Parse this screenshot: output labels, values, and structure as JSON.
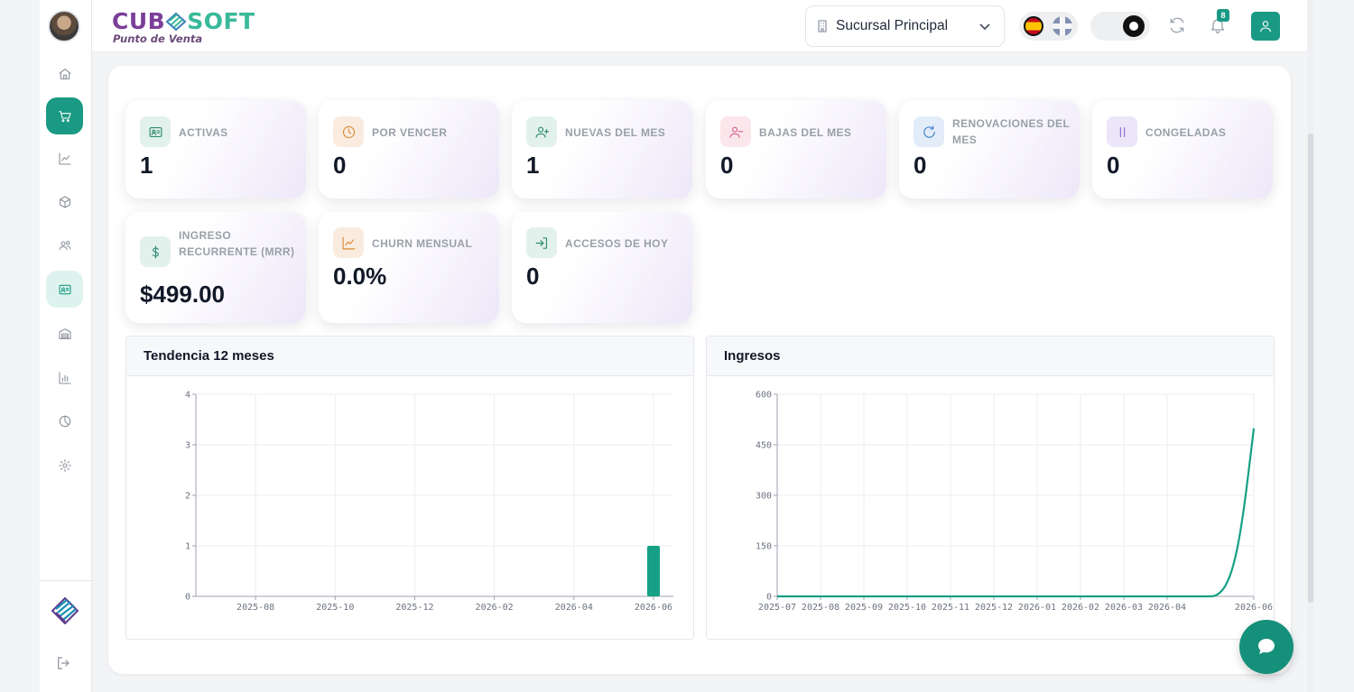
{
  "brand": {
    "name_part1": "CUB",
    "name_part2": "SOFT",
    "tagline": "Punto de Venta"
  },
  "header": {
    "branch_label": "Sucursal Principal",
    "notifications_count": "8",
    "languages": [
      "es",
      "en"
    ]
  },
  "sidebar": {
    "items": [
      {
        "name": "home",
        "icon": "home-icon",
        "state": "normal"
      },
      {
        "name": "sales",
        "icon": "cart-icon",
        "state": "active"
      },
      {
        "name": "analytics",
        "icon": "trend-icon",
        "state": "normal"
      },
      {
        "name": "inventory",
        "icon": "box-icon",
        "state": "normal"
      },
      {
        "name": "customers",
        "icon": "users-icon",
        "state": "normal"
      },
      {
        "name": "memberships",
        "icon": "id-card-icon",
        "state": "selected"
      },
      {
        "name": "warehouse",
        "icon": "warehouse-icon",
        "state": "normal"
      },
      {
        "name": "reports",
        "icon": "bar-chart-icon",
        "state": "normal"
      },
      {
        "name": "history",
        "icon": "clock-icon",
        "state": "normal"
      },
      {
        "name": "settings",
        "icon": "gear-icon",
        "state": "normal"
      }
    ]
  },
  "stats": [
    {
      "label": "ACTIVAS",
      "value": "1"
    },
    {
      "label": "POR VENCER",
      "value": "0"
    },
    {
      "label": "NUEVAS DEL MES",
      "value": "1"
    },
    {
      "label": "BAJAS DEL MES",
      "value": "0"
    },
    {
      "label": "RENOVACIONES DEL MES",
      "value": "0"
    },
    {
      "label": "CONGELADAS",
      "value": "0"
    },
    {
      "label": "INGRESO RECURRENTE (MRR)",
      "value": "$499.00"
    },
    {
      "label": "CHURN MENSUAL",
      "value": "0.0%"
    },
    {
      "label": "ACCESOS DE HOY",
      "value": "0"
    }
  ],
  "chart_data": [
    {
      "type": "bar",
      "title": "Tendencia 12 meses",
      "x_ticks": [
        "2025-08",
        "2025-10",
        "2025-12",
        "2026-02",
        "2026-04",
        "2026-06"
      ],
      "y_ticks": [
        0,
        1,
        2,
        3,
        4
      ],
      "ylim": [
        0,
        4
      ],
      "categories": [
        "2025-07",
        "2025-08",
        "2025-09",
        "2025-10",
        "2025-11",
        "2025-12",
        "2026-01",
        "2026-02",
        "2026-03",
        "2026-04",
        "2026-05",
        "2026-06"
      ],
      "values": [
        0,
        0,
        0,
        0,
        0,
        0,
        0,
        0,
        0,
        0,
        0,
        1
      ],
      "color": "#16a085",
      "grid": true
    },
    {
      "type": "line",
      "title": "Ingresos",
      "x_ticks": [
        "2025-07",
        "2025-08",
        "2025-09",
        "2025-10",
        "2025-11",
        "2025-12",
        "2026-01",
        "2026-02",
        "2026-03",
        "2026-04",
        "2026-06"
      ],
      "y_ticks": [
        0,
        150,
        300,
        450,
        600
      ],
      "ylim": [
        0,
        600
      ],
      "x": [
        "2025-07",
        "2025-08",
        "2025-09",
        "2025-10",
        "2025-11",
        "2025-12",
        "2026-01",
        "2026-02",
        "2026-03",
        "2026-04",
        "2026-05",
        "2026-06"
      ],
      "values": [
        0,
        0,
        0,
        0,
        0,
        0,
        0,
        0,
        0,
        0,
        0,
        499
      ],
      "color": "#16a085",
      "grid": true
    }
  ],
  "colors": {
    "accent": "#1a9a84",
    "brand_purple": "#7b3f98",
    "brand_teal": "#39b99a"
  }
}
